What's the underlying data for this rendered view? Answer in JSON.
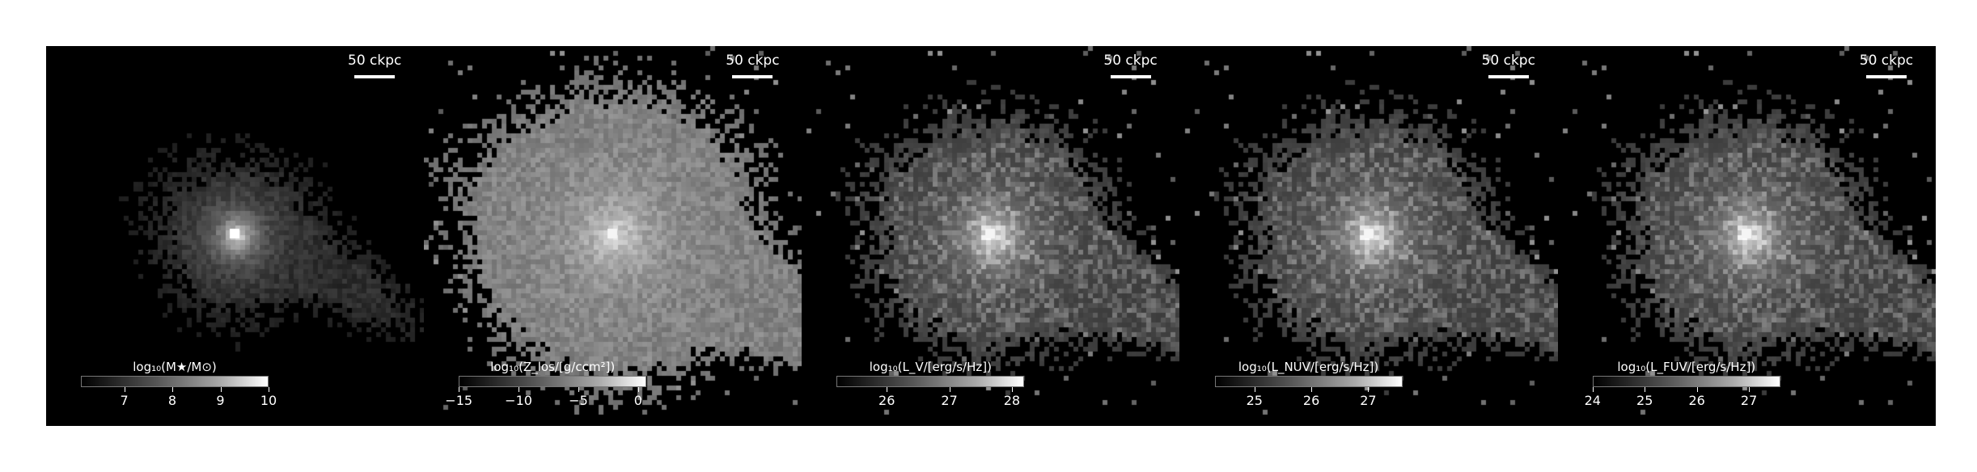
{
  "panels": [
    {
      "id": "stellar-mass",
      "scale_label": "50 ckpc",
      "colorbar_label": "log₁₀(M★/M⊙)",
      "ticks": [
        {
          "label": "7",
          "value": 7
        },
        {
          "label": "8",
          "value": 8
        },
        {
          "label": "9",
          "value": 9
        },
        {
          "label": "10",
          "value": 10
        }
      ],
      "range": [
        6.1,
        10
      ],
      "style": "compact"
    },
    {
      "id": "metallicity-los",
      "scale_label": "50 ckpc",
      "colorbar_label": "log₁₀(Z_los/[g/ccm²])",
      "ticks": [
        {
          "label": "−15",
          "value": -15
        },
        {
          "label": "−10",
          "value": -10
        },
        {
          "label": "−5",
          "value": -5
        },
        {
          "label": "0",
          "value": 0
        }
      ],
      "range": [
        -15,
        0.7
      ],
      "style": "extended"
    },
    {
      "id": "luminosity-v",
      "scale_label": "50 ckpc",
      "colorbar_label": "log₁₀(L_V/[erg/s/Hz])",
      "ticks": [
        {
          "label": "26",
          "value": 26
        },
        {
          "label": "27",
          "value": 27
        },
        {
          "label": "28",
          "value": 28
        }
      ],
      "range": [
        25.2,
        28.2
      ],
      "style": "medium"
    },
    {
      "id": "luminosity-nuv",
      "scale_label": "50 ckpc",
      "colorbar_label": "log₁₀(L_NUV/[erg/s/Hz])",
      "ticks": [
        {
          "label": "25",
          "value": 25
        },
        {
          "label": "26",
          "value": 26
        },
        {
          "label": "27",
          "value": 27
        }
      ],
      "range": [
        24.3,
        27.6
      ],
      "style": "medium"
    },
    {
      "id": "luminosity-fuv",
      "scale_label": "50 ckpc",
      "colorbar_label": "log₁₀(L_FUV/[erg/s/Hz])",
      "ticks": [
        {
          "label": "24",
          "value": 24
        },
        {
          "label": "25",
          "value": 25
        },
        {
          "label": "26",
          "value": 26
        },
        {
          "label": "27",
          "value": 27
        }
      ],
      "range": [
        24,
        27.6
      ],
      "style": "medium"
    }
  ]
}
